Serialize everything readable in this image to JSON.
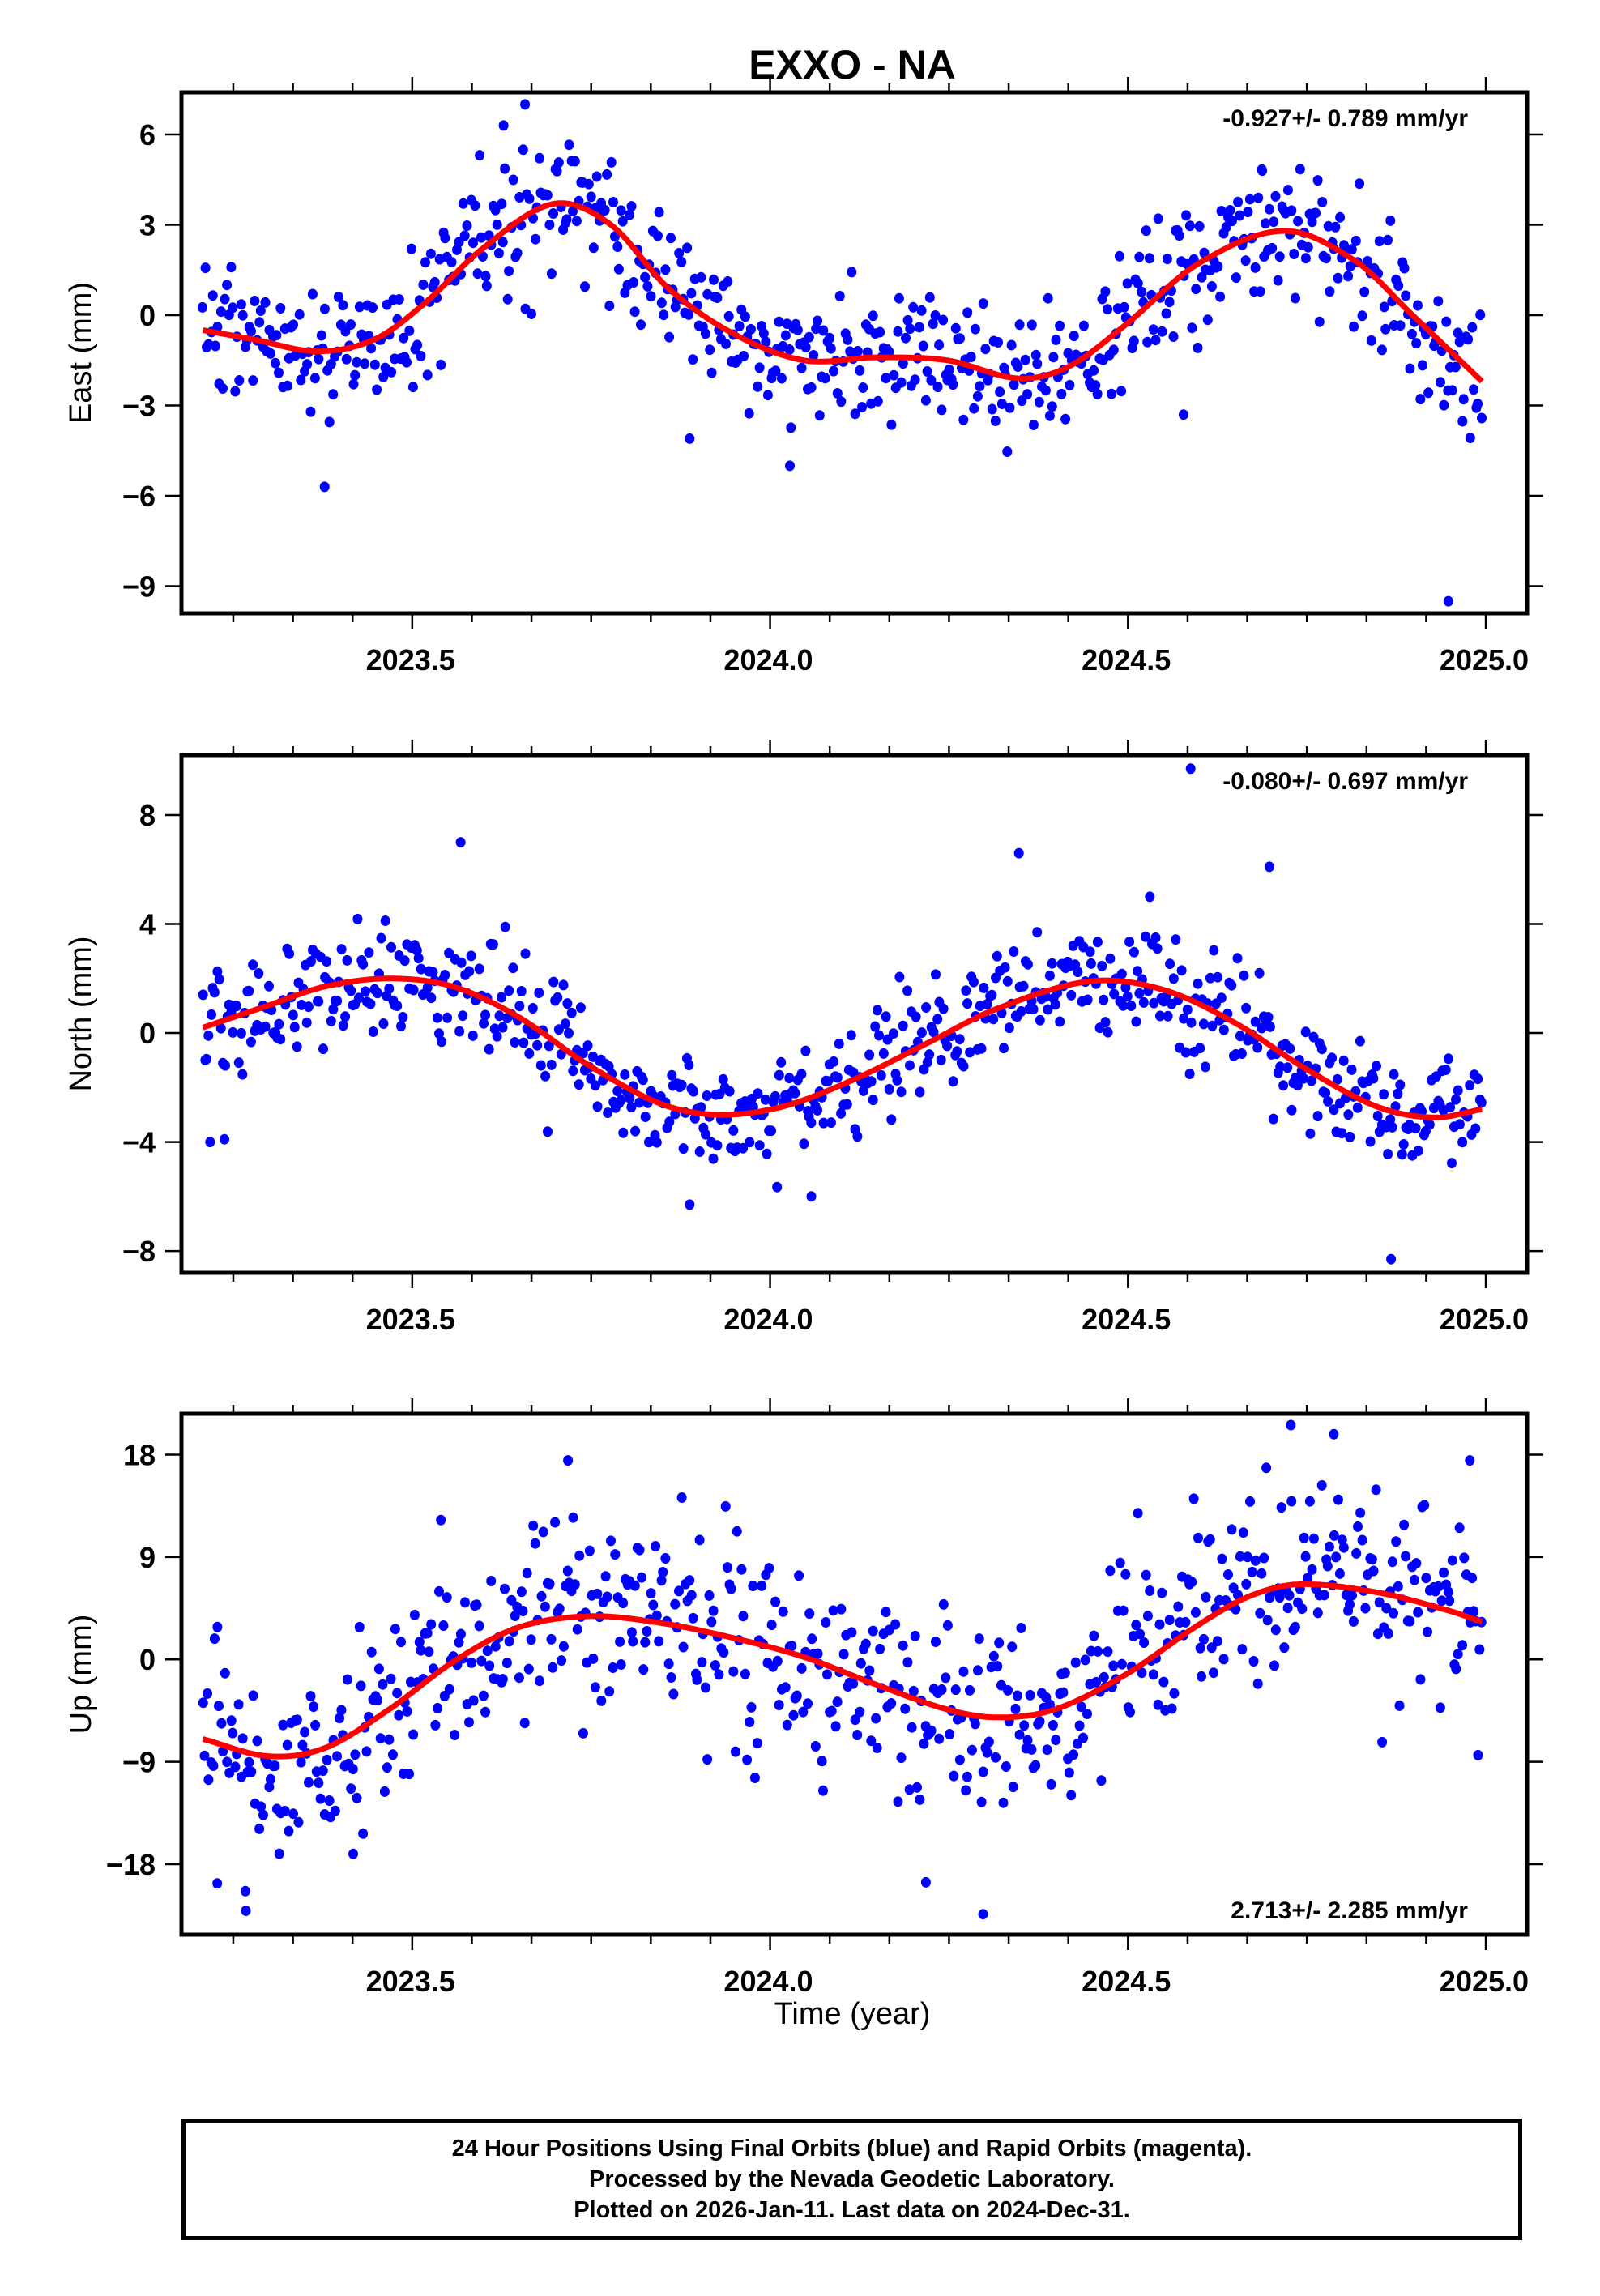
{
  "chart_data": {
    "title": "EXXO - NA",
    "type": "scatter",
    "xlabel": "Time (year)",
    "xlim": [
      2023.18,
      2025.06
    ],
    "x_ticks": [
      2023.5,
      2024.0,
      2024.5,
      2025.0
    ],
    "x_tick_labels": [
      "2023.5",
      "2024.0",
      "2024.5",
      "2025.0"
    ],
    "x_minor_tick_step_years": 0.08333,
    "data_x_range": [
      2023.21,
      2024.997
    ],
    "grid": false,
    "legend": "none",
    "point_color": "#0000ff",
    "model_color": "#ff0000",
    "panels": [
      {
        "id": "east",
        "ylabel": "East (mm)",
        "ylim": [
          -9.9,
          7.4
        ],
        "y_ticks": [
          6,
          3,
          0,
          -3,
          -6,
          -9
        ],
        "y_tick_labels": [
          "6",
          "3",
          "0",
          "−3",
          "−6",
          "−9"
        ],
        "rate_text": "-0.927+/- 0.789 mm/yr",
        "rate_position": "top-right",
        "model_fit": {
          "x": [
            2023.21,
            2023.28,
            2023.37,
            2023.45,
            2023.52,
            2023.6,
            2023.7,
            2023.78,
            2023.86,
            2023.95,
            2024.05,
            2024.15,
            2024.25,
            2024.35,
            2024.42,
            2024.5,
            2024.6,
            2024.72,
            2024.82,
            2024.9,
            2024.997
          ],
          "y": [
            -0.5,
            -0.8,
            -1.2,
            -0.8,
            0.4,
            2.2,
            3.7,
            3.0,
            0.9,
            -0.6,
            -1.5,
            -1.4,
            -1.5,
            -2.1,
            -1.7,
            -0.3,
            1.7,
            2.8,
            1.8,
            0.0,
            -2.2
          ]
        },
        "residual_noise_mm": 1.3,
        "n_points": 640,
        "outliers": [
          {
            "x": 2023.38,
            "y": -5.7
          },
          {
            "x": 2023.66,
            "y": 7.0
          },
          {
            "x": 2023.63,
            "y": 6.3
          },
          {
            "x": 2023.89,
            "y": -4.1
          },
          {
            "x": 2024.03,
            "y": -5.0
          },
          {
            "x": 2024.58,
            "y": -3.3
          },
          {
            "x": 2024.69,
            "y": 4.8
          },
          {
            "x": 2024.95,
            "y": -9.5
          }
        ]
      },
      {
        "id": "north",
        "ylabel": "North (mm)",
        "ylim": [
          -8.8,
          10.2
        ],
        "y_ticks": [
          8,
          4,
          0,
          -4,
          -8
        ],
        "y_tick_labels": [
          "8",
          "4",
          "0",
          "−4",
          "−8"
        ],
        "rate_text": "-0.080+/- 0.697 mm/yr",
        "rate_position": "top-right",
        "model_fit": {
          "x": [
            2023.21,
            2023.3,
            2023.38,
            2023.47,
            2023.56,
            2023.65,
            2023.75,
            2023.85,
            2023.93,
            2024.02,
            2024.12,
            2024.22,
            2024.32,
            2024.45,
            2024.55,
            2024.65,
            2024.75,
            2024.85,
            2024.93,
            2024.997
          ],
          "y": [
            0.2,
            1.0,
            1.7,
            2.0,
            1.7,
            0.6,
            -1.2,
            -2.6,
            -3.0,
            -2.7,
            -1.7,
            -0.4,
            0.9,
            1.9,
            1.6,
            0.4,
            -1.3,
            -2.7,
            -3.1,
            -2.8
          ]
        },
        "residual_noise_mm": 1.2,
        "n_points": 640,
        "outliers": [
          {
            "x": 2023.22,
            "y": -4.0
          },
          {
            "x": 2023.24,
            "y": -3.9
          },
          {
            "x": 2023.57,
            "y": 7.0
          },
          {
            "x": 2023.89,
            "y": -6.3
          },
          {
            "x": 2024.06,
            "y": -6.0
          },
          {
            "x": 2024.35,
            "y": 6.6
          },
          {
            "x": 2024.59,
            "y": 9.7
          },
          {
            "x": 2024.7,
            "y": 6.1
          },
          {
            "x": 2024.87,
            "y": -8.3
          }
        ]
      },
      {
        "id": "up",
        "ylabel": "Up (mm)",
        "ylim": [
          -24.2,
          21.6
        ],
        "y_ticks": [
          18,
          9,
          0,
          -9,
          -18
        ],
        "y_tick_labels": [
          "18",
          "9",
          "0",
          "−9",
          "−18"
        ],
        "rate_text": "2.713+/- 2.285 mm/yr",
        "rate_position": "bottom-right",
        "model_fit": {
          "x": [
            2023.21,
            2023.3,
            2023.38,
            2023.47,
            2023.56,
            2023.65,
            2023.75,
            2023.85,
            2023.95,
            2024.05,
            2024.15,
            2024.25,
            2024.32,
            2024.4,
            2024.5,
            2024.6,
            2024.67,
            2024.74,
            2024.85,
            2024.95,
            2024.997
          ],
          "y": [
            -7.0,
            -8.5,
            -7.8,
            -4.4,
            -0.2,
            2.8,
            3.8,
            3.2,
            1.9,
            0.2,
            -2.2,
            -4.4,
            -5.1,
            -4.4,
            -1.3,
            3.0,
            5.5,
            6.6,
            5.9,
            4.3,
            3.3
          ]
        },
        "residual_noise_mm": 5.0,
        "n_points": 640,
        "outliers": [
          {
            "x": 2023.23,
            "y": -19.7
          },
          {
            "x": 2023.27,
            "y": -22.1
          },
          {
            "x": 2023.42,
            "y": -17.1
          },
          {
            "x": 2023.72,
            "y": 17.5
          },
          {
            "x": 2024.22,
            "y": -19.6
          },
          {
            "x": 2024.3,
            "y": -22.4
          },
          {
            "x": 2024.73,
            "y": 20.6
          },
          {
            "x": 2024.79,
            "y": 19.8
          },
          {
            "x": 2024.98,
            "y": 17.5
          }
        ]
      }
    ]
  },
  "footer": {
    "line1": "24 Hour Positions Using Final Orbits (blue) and Rapid Orbits (magenta).",
    "line2": "Processed by the Nevada Geodetic Laboratory.",
    "line3": "Plotted on 2026-Jan-11. Last data on 2024-Dec-31."
  }
}
